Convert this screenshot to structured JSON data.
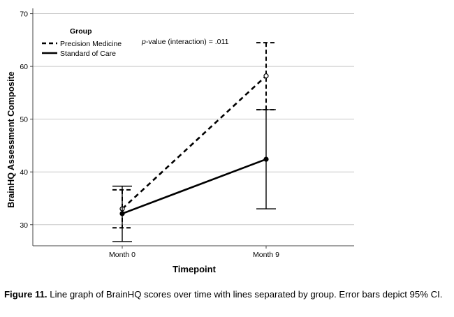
{
  "chart_data": {
    "type": "line",
    "categories": [
      "Month 0",
      "Month 9"
    ],
    "xlabel": "Timepoint",
    "ylabel": "BrainHQ Assessment Composite",
    "ylim": [
      26,
      71
    ],
    "yticks": [
      30,
      40,
      50,
      60,
      70
    ],
    "grid": true,
    "legend": {
      "title": "Group",
      "placement": "top-left"
    },
    "annotation": {
      "italic": "p",
      "text": "-value (interaction) = .011"
    },
    "series": [
      {
        "name": "Precision Medicine",
        "style": "dashed",
        "marker": "open-circle",
        "values": [
          33.0,
          58.2
        ],
        "ci_low": [
          29.4,
          51.8
        ],
        "ci_high": [
          36.6,
          64.5
        ]
      },
      {
        "name": "Standard of Care",
        "style": "solid",
        "marker": "filled-circle",
        "values": [
          32.1,
          42.4
        ],
        "ci_low": [
          26.8,
          33.0
        ],
        "ci_high": [
          37.3,
          51.8
        ]
      }
    ]
  },
  "caption": {
    "label": "Figure 11.",
    "text": " Line graph of BrainHQ scores over time with lines separated by group. Error bars depict 95% CI."
  }
}
